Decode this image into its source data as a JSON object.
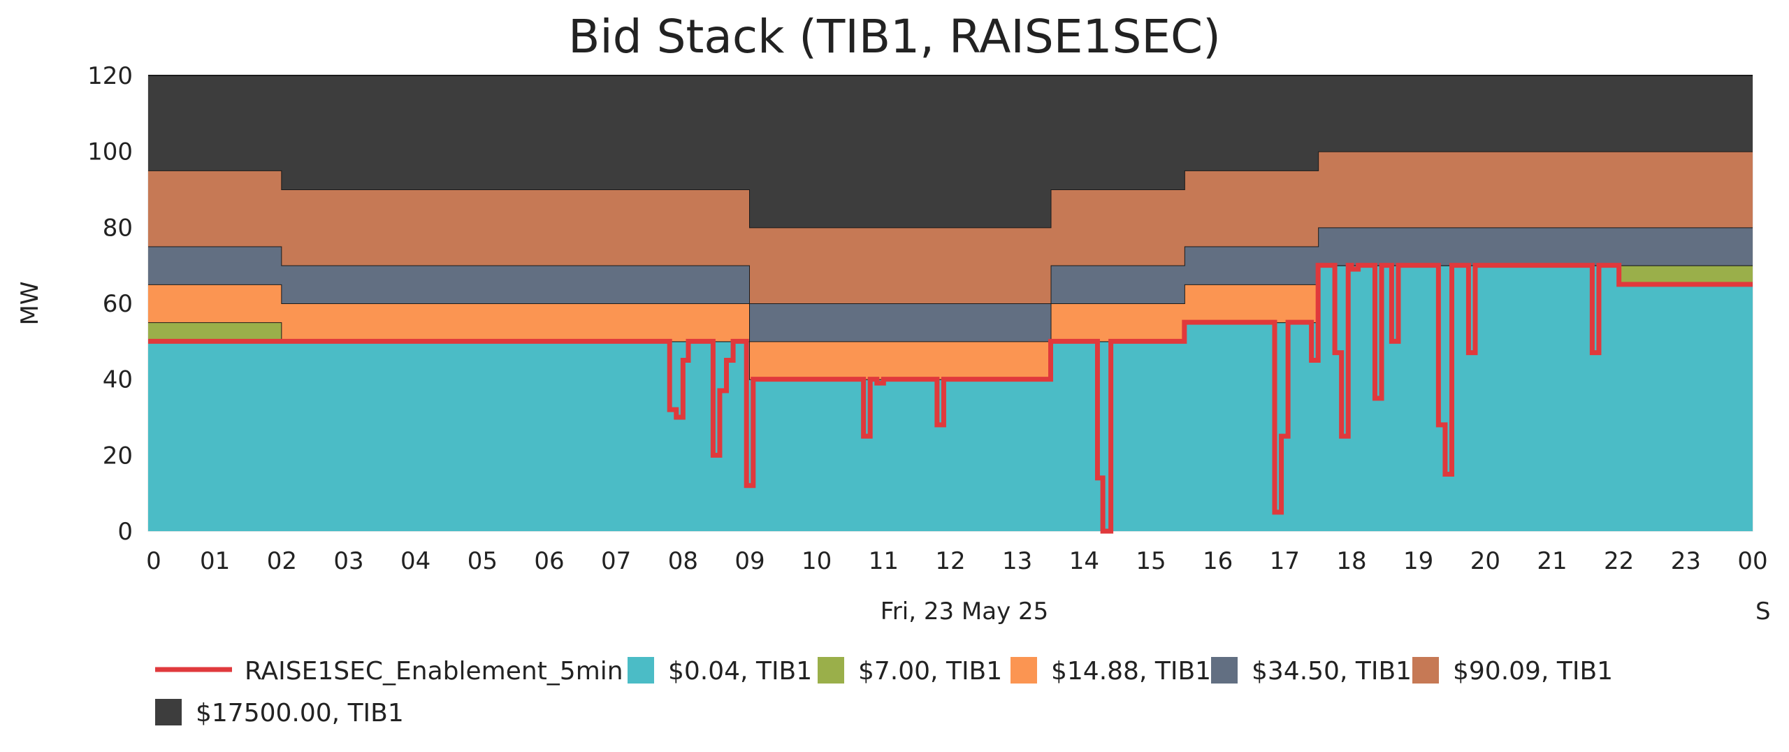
{
  "chart_data": {
    "type": "area",
    "title": "Bid Stack (TIB1, RAISE1SEC)",
    "xlabel": "Fri, 23 May 25",
    "ylabel": "MW",
    "ylim": [
      0,
      120
    ],
    "xlim": [
      0,
      24
    ],
    "y_ticks": [
      0,
      20,
      40,
      60,
      80,
      100,
      120
    ],
    "x_tick_labels": [
      "0",
      "01",
      "02",
      "03",
      "04",
      "05",
      "06",
      "07",
      "08",
      "09",
      "10",
      "11",
      "12",
      "13",
      "14",
      "15",
      "16",
      "17",
      "18",
      "19",
      "20",
      "21",
      "22",
      "23",
      "00"
    ],
    "x_extra_label": "S",
    "grid": true,
    "legend_position": "bottom",
    "series": [
      {
        "name": "$0.04, TIB1",
        "color": "#4bbcc6",
        "kind": "stacked-step",
        "steps": [
          [
            0,
            50
          ],
          [
            9,
            40
          ],
          [
            13.5,
            50
          ],
          [
            15.5,
            55
          ],
          [
            17.5,
            70
          ],
          [
            22,
            65
          ],
          [
            24,
            65
          ]
        ]
      },
      {
        "name": "$7.00, TIB1",
        "color": "#9aaf4a",
        "kind": "stacked-step",
        "steps": [
          [
            0,
            5
          ],
          [
            2,
            0
          ],
          [
            22,
            5
          ],
          [
            24,
            5
          ]
        ]
      },
      {
        "name": "$14.88, TIB1",
        "color": "#fb9552",
        "kind": "stacked-step",
        "steps": [
          [
            0,
            10
          ],
          [
            2,
            10
          ],
          [
            9,
            10
          ],
          [
            13.5,
            10
          ],
          [
            15.5,
            10
          ],
          [
            17.5,
            0
          ],
          [
            24,
            0
          ]
        ]
      },
      {
        "name": "$34.50, TIB1",
        "color": "#626f82",
        "kind": "stacked-step",
        "steps": [
          [
            0,
            10
          ],
          [
            2,
            10
          ],
          [
            9,
            10
          ],
          [
            13.5,
            10
          ],
          [
            15.5,
            10
          ],
          [
            17.5,
            10
          ],
          [
            22,
            10
          ],
          [
            24,
            10
          ]
        ]
      },
      {
        "name": "$90.09, TIB1",
        "color": "#c67955",
        "kind": "stacked-step",
        "steps": [
          [
            0,
            20
          ],
          [
            2,
            20
          ],
          [
            9,
            20
          ],
          [
            13.5,
            20
          ],
          [
            15.5,
            20
          ],
          [
            17.5,
            20
          ],
          [
            24,
            20
          ]
        ]
      },
      {
        "name": "$17500.00, TIB1",
        "color": "#3d3d3d",
        "kind": "stacked-step",
        "steps": [
          [
            0,
            25
          ],
          [
            2,
            30
          ],
          [
            9,
            40
          ],
          [
            13.5,
            30
          ],
          [
            15.5,
            25
          ],
          [
            17.5,
            20
          ],
          [
            24,
            20
          ]
        ]
      }
    ],
    "line_series": {
      "name": "RAISE1SEC_Enablement_5min",
      "color": "#e0393c",
      "baseline_steps": [
        [
          0,
          50
        ],
        [
          9,
          40
        ],
        [
          13.5,
          50
        ],
        [
          15.5,
          55
        ],
        [
          17.5,
          70
        ],
        [
          22,
          65
        ],
        [
          24,
          65
        ]
      ],
      "dips": [
        [
          7.8,
          7.9,
          32
        ],
        [
          7.9,
          8.0,
          30
        ],
        [
          8.0,
          8.08,
          45
        ],
        [
          8.45,
          8.55,
          20
        ],
        [
          8.55,
          8.65,
          37
        ],
        [
          8.65,
          8.75,
          45
        ],
        [
          8.85,
          8.95,
          50
        ],
        [
          8.95,
          9.05,
          12
        ],
        [
          10.7,
          10.8,
          25
        ],
        [
          10.9,
          11.0,
          39
        ],
        [
          11.8,
          11.9,
          28
        ],
        [
          14.2,
          14.28,
          14
        ],
        [
          14.28,
          14.4,
          0
        ],
        [
          16.85,
          16.95,
          5
        ],
        [
          16.95,
          17.05,
          25
        ],
        [
          17.05,
          17.15,
          55
        ],
        [
          17.4,
          17.5,
          45
        ],
        [
          17.75,
          17.85,
          47
        ],
        [
          17.85,
          17.95,
          25
        ],
        [
          18.0,
          18.1,
          69
        ],
        [
          18.35,
          18.45,
          35
        ],
        [
          18.6,
          18.7,
          50
        ],
        [
          19.3,
          19.4,
          28
        ],
        [
          19.4,
          19.5,
          15
        ],
        [
          19.75,
          19.85,
          47
        ],
        [
          21.6,
          21.7,
          47
        ]
      ]
    }
  }
}
